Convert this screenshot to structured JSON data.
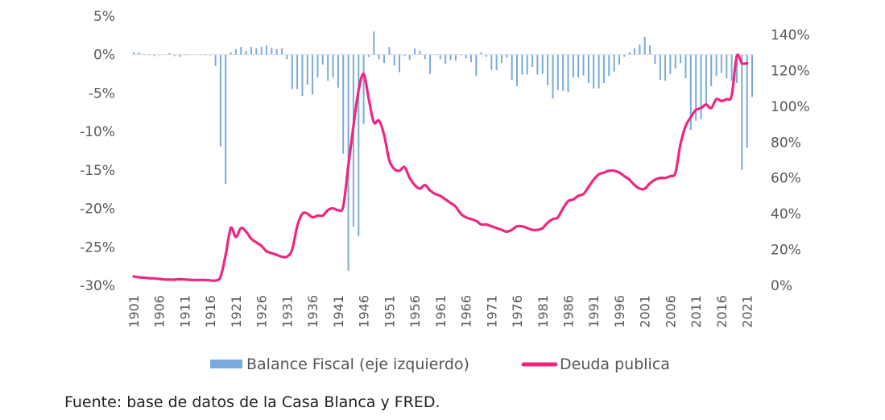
{
  "chart_data": {
    "type": "bar+line",
    "x_start": 1901,
    "x_end": 2022,
    "x_tick_labels": [
      "1901",
      "1906",
      "1911",
      "1916",
      "1921",
      "1926",
      "1931",
      "1936",
      "1941",
      "1946",
      "1951",
      "1956",
      "1961",
      "1966",
      "1971",
      "1976",
      "1981",
      "1986",
      "1991",
      "1996",
      "2001",
      "2006",
      "2011",
      "2016",
      "2021"
    ],
    "y_left": {
      "ticks": [
        "5%",
        "0%",
        "-5%",
        "-10%",
        "-15%",
        "-20%",
        "-25%",
        "-30%"
      ],
      "min": -30,
      "max": 5,
      "unit": "%"
    },
    "y_right": {
      "ticks": [
        "140%",
        "120%",
        "100%",
        "80%",
        "60%",
        "40%",
        "20%",
        "0%"
      ],
      "min": 0,
      "max": 140,
      "unit": "%"
    },
    "series": [
      {
        "name": "Balance Fiscal (eje izquierdo)",
        "type": "bar",
        "axis": "left",
        "color": "#7aaadc",
        "values": [
          0.3,
          0.3,
          0.1,
          -0.1,
          -0.2,
          -0.1,
          0.0,
          0.2,
          -0.2,
          -0.3,
          -0.1,
          0.0,
          0.0,
          0.0,
          -0.1,
          -0.1,
          -1.5,
          -11.9,
          -16.8,
          0.3,
          0.7,
          1.0,
          0.5,
          1.0,
          0.8,
          1.0,
          1.2,
          0.9,
          0.7,
          0.8,
          -0.6,
          -4.5,
          -4.5,
          -5.4,
          -3.9,
          -5.2,
          -3.0,
          -1.3,
          -3.4,
          -3.0,
          -4.3,
          -12.9,
          -28.1,
          -22.4,
          -23.6,
          -9.0,
          -0.3,
          3.0,
          -0.6,
          -1.1,
          1.0,
          -1.4,
          -2.3,
          -0.2,
          -0.7,
          0.8,
          0.5,
          -0.6,
          -2.5,
          0.0,
          -0.6,
          -1.2,
          -0.7,
          -0.8,
          -0.1,
          -0.5,
          -1.0,
          -2.8,
          0.3,
          -0.3,
          -2.0,
          -2.0,
          -1.1,
          -0.4,
          -3.3,
          -4.1,
          -2.6,
          -2.6,
          -1.6,
          -2.6,
          -2.5,
          -4.0,
          -5.7,
          -4.6,
          -4.7,
          -4.9,
          -3.0,
          -3.0,
          -2.7,
          -3.7,
          -4.4,
          -4.4,
          -3.7,
          -2.8,
          -2.2,
          -1.3,
          -0.3,
          0.3,
          0.8,
          1.3,
          2.3,
          1.2,
          -1.2,
          -3.3,
          -3.4,
          -2.5,
          -1.8,
          -1.1,
          -3.1,
          -9.8,
          -8.6,
          -8.4,
          -6.7,
          -4.1,
          -2.8,
          -2.4,
          -3.1,
          -3.4,
          -3.7,
          -15.0,
          -12.1,
          -5.5
        ]
      },
      {
        "name": "Deuda publica",
        "type": "line",
        "axis": "right",
        "color": "#f0257f",
        "values": [
          5,
          4.5,
          4.3,
          4,
          3.9,
          3.6,
          3.3,
          3.2,
          3.2,
          3.4,
          3.3,
          3.1,
          3,
          3,
          3,
          2.8,
          2.7,
          4.8,
          17,
          32,
          27,
          32,
          30,
          26,
          24,
          22,
          19,
          18,
          17,
          16,
          16,
          20,
          33,
          40,
          40,
          38,
          39,
          39,
          42,
          43,
          42,
          44,
          67,
          89,
          109,
          118,
          104,
          91,
          92,
          84,
          70,
          65,
          64,
          66,
          60,
          56,
          54,
          56,
          53,
          51,
          50,
          48,
          46,
          44,
          40,
          38,
          37,
          36,
          34,
          34,
          33,
          32,
          31,
          30,
          31,
          33,
          33,
          32,
          31,
          31,
          32,
          35,
          37,
          38,
          43,
          47,
          48,
          50,
          51,
          55,
          59,
          62,
          63,
          64,
          64,
          63,
          61,
          59,
          56,
          54,
          54,
          57,
          59,
          60,
          60,
          61,
          63,
          79,
          89,
          94,
          98,
          99,
          101,
          99,
          104,
          103,
          104,
          106,
          128,
          124,
          124
        ]
      }
    ],
    "legend": {
      "placement": "bottom",
      "entries": [
        "Balance Fiscal (eje izquierdo)",
        "Deuda publica"
      ]
    },
    "source": "Fuente: base de datos de la Casa Blanca y FRED."
  }
}
